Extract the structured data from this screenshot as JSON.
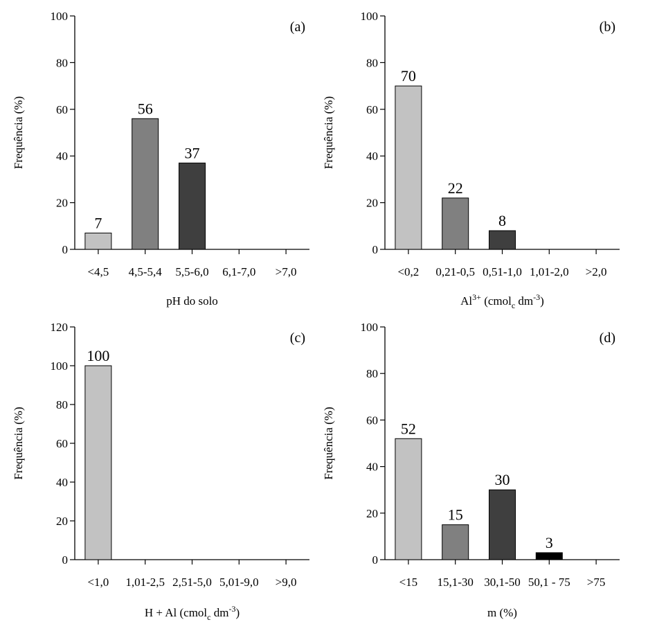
{
  "chart_data": [
    {
      "panel": "(a)",
      "type": "bar",
      "categories": [
        "<4,5",
        "4,5-5,4",
        "5,5-6,0",
        "6,1-7,0",
        ">7,0"
      ],
      "values": [
        7,
        56,
        37,
        0,
        0
      ],
      "value_labels": [
        "7",
        "56",
        "37",
        "",
        ""
      ],
      "bar_colors": [
        "#c2c2c2",
        "#808080",
        "#3f3f3f",
        "#ffffff",
        "#ffffff"
      ],
      "xlabel": "pH do solo",
      "ylabel": "Frequência (%)",
      "ylim": [
        0,
        100
      ],
      "yticks": [
        0,
        20,
        40,
        60,
        80,
        100
      ],
      "grid": false
    },
    {
      "panel": "(b)",
      "type": "bar",
      "categories": [
        "<0,2",
        "0,21-0,5",
        "0,51-1,0",
        "1,01-2,0",
        ">2,0"
      ],
      "values": [
        70,
        22,
        8,
        0,
        0
      ],
      "value_labels": [
        "70",
        "22",
        "8",
        "",
        ""
      ],
      "bar_colors": [
        "#c2c2c2",
        "#808080",
        "#3f3f3f",
        "#ffffff",
        "#ffffff"
      ],
      "xlabel": "Al3+ (cmolc dm-3)",
      "ylabel": "Frequência (%)",
      "ylim": [
        0,
        100
      ],
      "yticks": [
        0,
        20,
        40,
        60,
        80,
        100
      ],
      "grid": false
    },
    {
      "panel": "(c)",
      "type": "bar",
      "categories": [
        "<1,0",
        "1,01-2,5",
        "2,51-5,0",
        "5,01-9,0",
        ">9,0"
      ],
      "values": [
        100,
        0,
        0,
        0,
        0
      ],
      "value_labels": [
        "100",
        "",
        "",
        "",
        ""
      ],
      "bar_colors": [
        "#c2c2c2",
        "#808080",
        "#3f3f3f",
        "#000000",
        "#ffffff"
      ],
      "xlabel": "H + Al  (cmolc dm-3)",
      "ylabel": "Frequência (%)",
      "ylim": [
        0,
        120
      ],
      "yticks": [
        0,
        20,
        40,
        60,
        80,
        100,
        120
      ],
      "grid": false
    },
    {
      "panel": "(d)",
      "type": "bar",
      "categories": [
        "<15",
        "15,1-30",
        "30,1-50",
        "50,1 - 75",
        ">75"
      ],
      "values": [
        52,
        15,
        30,
        3,
        0
      ],
      "value_labels": [
        "52",
        "15",
        "30",
        "3",
        ""
      ],
      "bar_colors": [
        "#c2c2c2",
        "#808080",
        "#3f3f3f",
        "#000000",
        "#ffffff"
      ],
      "xlabel": "m (%)",
      "ylabel": "Frequência (%)",
      "ylim": [
        0,
        100
      ],
      "yticks": [
        0,
        20,
        40,
        60,
        80,
        100
      ],
      "grid": false
    }
  ]
}
